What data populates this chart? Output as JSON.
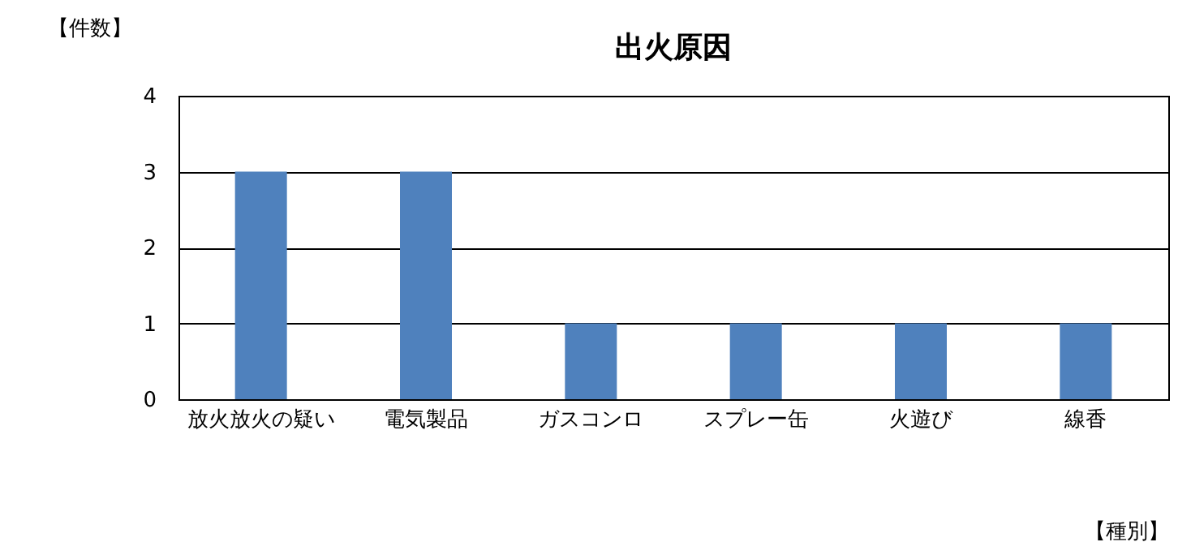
{
  "chart_data": {
    "type": "bar",
    "title": "出火原因",
    "ylabel": "【件数】",
    "xlabel": "【種別】",
    "categories": [
      "放火放火の疑い",
      "電気製品",
      "ガスコンロ",
      "スプレー缶",
      "火遊び",
      "線香"
    ],
    "values": [
      3,
      3,
      1,
      1,
      1,
      1
    ],
    "color": "#4f81bd",
    "ylim": [
      0,
      4
    ],
    "yticks": [
      0,
      1,
      2,
      3,
      4
    ],
    "grid": "y"
  }
}
